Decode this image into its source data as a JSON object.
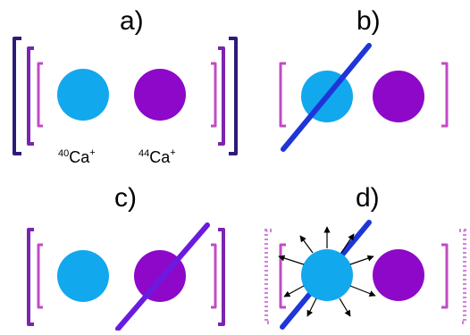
{
  "panels": {
    "a": {
      "label": "a)"
    },
    "b": {
      "label": "b)"
    },
    "c": {
      "label": "c)"
    },
    "d": {
      "label": "d)"
    }
  },
  "ions": {
    "ion1": {
      "mass": "40",
      "symbol": "Ca",
      "charge": "+"
    },
    "ion2": {
      "mass": "44",
      "symbol": "Ca",
      "charge": "+"
    }
  },
  "colors": {
    "ion_40": "#12A8EE",
    "ion_44": "#8E08C9",
    "bracket_outer": "#2E1B78",
    "bracket_mid": "#7A24B0",
    "bracket_inner": "#C24BC4",
    "beam_b": "#1E35D8",
    "beam_c": "#6A1BE0",
    "beam_d": "#1E35D8",
    "arrows": "#000000"
  }
}
